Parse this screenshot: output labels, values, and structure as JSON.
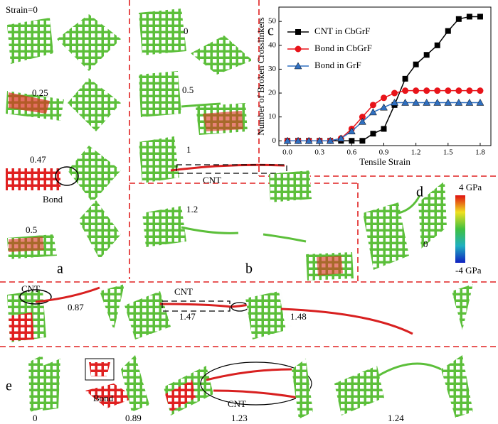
{
  "panels": {
    "a": {
      "label": "a",
      "strain_first": "Strain=0",
      "strain_2": "0.25",
      "strain_3": "0.47",
      "bond": "Bond",
      "strain_4": "0.5"
    },
    "b": {
      "label": "b",
      "strain_1": "0",
      "strain_2": "0.5",
      "strain_3": "1",
      "cnt": "CNT",
      "strain_4": "1.2"
    },
    "d": {
      "label": "d",
      "cbar_max": "4 GPa",
      "cbar_min": "-4 GPa",
      "strain": "0"
    },
    "row3": {
      "cnt_1": "CNT",
      "strain_1": "0.87",
      "cnt_2": "CNT",
      "strain_2": "1.47",
      "strain_3": "1.48"
    },
    "e": {
      "label": "e",
      "strain_1": "0",
      "bond": "Bond",
      "strain_2": "0.89",
      "cnt": "CNT",
      "strain_3": "1.23",
      "strain_4": "1.24"
    }
  },
  "chart_data": {
    "type": "line",
    "panel_label": "c",
    "x_label": "Tensile Strain",
    "y_label": "Number of Broken Crosslinkers",
    "x": [
      0,
      0.1,
      0.2,
      0.3,
      0.4,
      0.5,
      0.6,
      0.7,
      0.8,
      0.9,
      1.0,
      1.1,
      1.2,
      1.3,
      1.4,
      1.5,
      1.6,
      1.7,
      1.8
    ],
    "series": [
      {
        "name": "CNT in CbGrF",
        "color": "#000000",
        "marker": "square",
        "values": [
          0,
          0,
          0,
          0,
          0,
          0,
          0,
          0,
          3,
          5,
          15,
          26,
          32,
          36,
          40,
          46,
          51,
          52,
          52
        ]
      },
      {
        "name": "Bond in CbGrF",
        "color": "#e8141a",
        "marker": "circle",
        "values": [
          0,
          0,
          0,
          0,
          0,
          1,
          5,
          10,
          15,
          18,
          20,
          21,
          21,
          21,
          21,
          21,
          21,
          21,
          21
        ]
      },
      {
        "name": "Bond in GrF",
        "color": "#2f6fc0",
        "marker": "triangle",
        "values": [
          0,
          0,
          0,
          0,
          0,
          1,
          4,
          8,
          12,
          14,
          16,
          16,
          16,
          16,
          16,
          16,
          16,
          16,
          16
        ]
      }
    ],
    "xlim": [
      -0.08,
      1.9
    ],
    "ylim": [
      -2,
      56
    ],
    "xticks": [
      {
        "value": 0,
        "label": "0.0"
      },
      0.3,
      0.6,
      0.9,
      1.2,
      1.5,
      1.8
    ],
    "yticks": [
      0,
      10,
      20,
      30,
      40,
      50
    ],
    "legend": "upper left"
  }
}
